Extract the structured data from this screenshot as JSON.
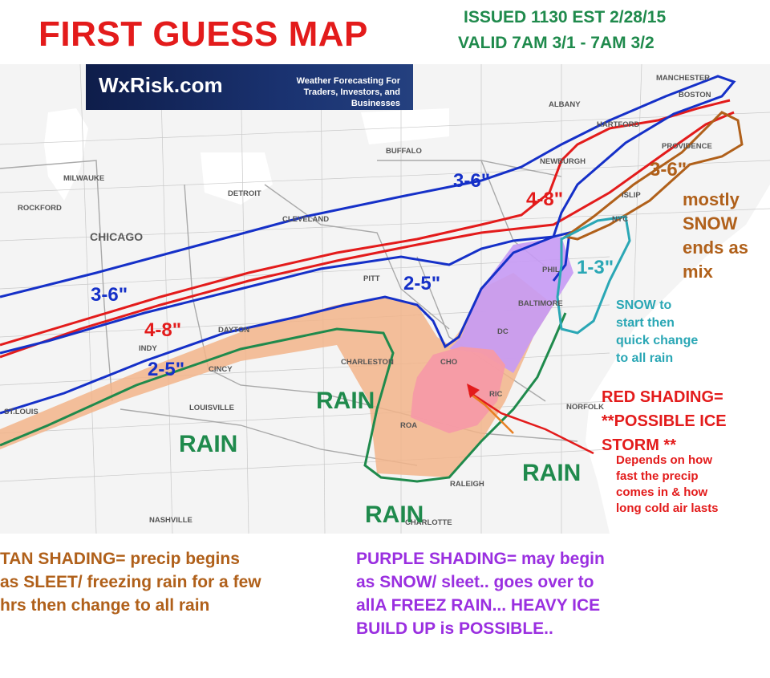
{
  "header": {
    "title": "FIRST GUESS MAP",
    "issued": "ISSUED  1130 EST  2/28/15",
    "valid": "VALID 7AM 3/1 -  7AM 3/2"
  },
  "logo": {
    "name": "WxRisk.com",
    "tagline": "Weather Forecasting For\nTraders, Investors, and Businesses"
  },
  "cities": [
    {
      "label": "MANCHESTER",
      "size": "small"
    },
    {
      "label": "BOSTON",
      "size": "small"
    },
    {
      "label": "ALBANY",
      "size": "small"
    },
    {
      "label": "HARTFORD",
      "size": "small"
    },
    {
      "label": "PROVIDENCE",
      "size": "small"
    },
    {
      "label": "BUFFALO",
      "size": "small"
    },
    {
      "label": "NEWBURGH",
      "size": "small"
    },
    {
      "label": "ISLIP",
      "size": "small"
    },
    {
      "label": "NYC",
      "size": "small"
    },
    {
      "label": "MILWAUKE",
      "size": "small"
    },
    {
      "label": "DETROIT",
      "size": "small"
    },
    {
      "label": "ROCKFORD",
      "size": "small"
    },
    {
      "label": "CLEVELAND",
      "size": "small"
    },
    {
      "label": "CHICAGO",
      "size": "large"
    },
    {
      "label": "PITT",
      "size": "small"
    },
    {
      "label": "PHIL",
      "size": "small"
    },
    {
      "label": "BALTIMORE",
      "size": "small"
    },
    {
      "label": "DAYTON",
      "size": "small"
    },
    {
      "label": "INDY",
      "size": "small"
    },
    {
      "label": "DC",
      "size": "small"
    },
    {
      "label": "CINCY",
      "size": "small"
    },
    {
      "label": "CHARLESTON",
      "size": "small"
    },
    {
      "label": "CHO",
      "size": "small"
    },
    {
      "label": "RIC",
      "size": "small"
    },
    {
      "label": "ST.LOUIS",
      "size": "small"
    },
    {
      "label": "LOUISVILLE",
      "size": "small"
    },
    {
      "label": "NORFOLK",
      "size": "small"
    },
    {
      "label": "ROA",
      "size": "small"
    },
    {
      "label": "RALEIGH",
      "size": "small"
    },
    {
      "label": "NASHVILLE",
      "size": "small"
    },
    {
      "label": "CHARLOTTE",
      "size": "small"
    }
  ],
  "snow_labels": {
    "blue_upper": "3-6\"",
    "red_upper": "4-8\"",
    "blue_mid": "2-5\"",
    "blue_left": "3-6\"",
    "red_left": "4-8\"",
    "blue_lower": "2-5\"",
    "brown": "3-6\"",
    "teal": "1-3\""
  },
  "rain_labels": [
    "RAIN",
    "RAIN",
    "RAIN",
    "RAIN"
  ],
  "notes": {
    "brown": "mostly\nSNOW\nends as\nmix",
    "teal": "SNOW to\nstart then\nquick change\nto all rain",
    "red_title": "RED SHADING=\n**POSSIBLE  ICE\nSTORM **",
    "red_sub": "Depends on how\nfast  the precip\ncomes in & how\nlong cold air lasts"
  },
  "legend": {
    "tan": "TAN SHADING=   precip  begins\nas SLEET/  freezing rain  for a few\nhrs then change to all rain",
    "purple": "PURPLE SHADING=  may begin\nas  SNOW/ sleet..  goes over to\nallA FREEZ  RAIN...  HEAVY ICE\nBUILD UP  is  POSSIBLE.."
  },
  "colors": {
    "title": "#e31b1b",
    "issued": "#1f8a4c",
    "blue_contour": "#1530c8",
    "red_contour": "#e31b1b",
    "green_contour": "#1f8a4c",
    "brown_contour": "#b0601a",
    "teal_contour": "#2aa7b5",
    "tan_shading": "#f2b48a",
    "purple_shading": "#c79af5",
    "red_shading": "#f59aa6"
  }
}
